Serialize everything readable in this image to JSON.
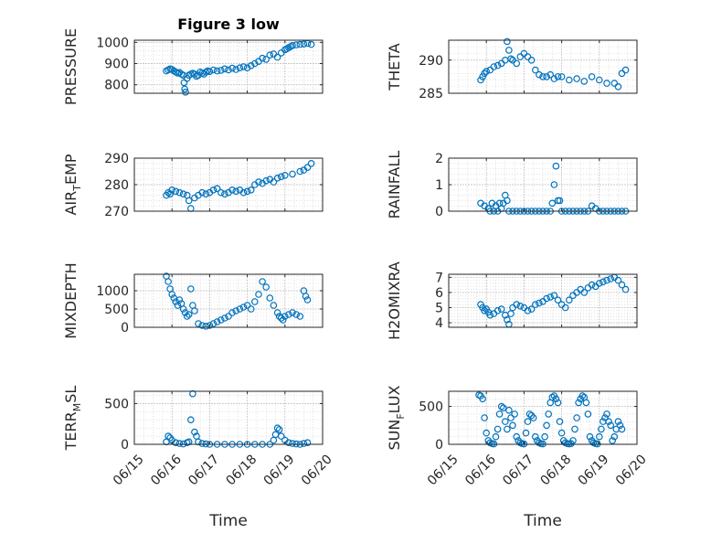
{
  "chart_data": [
    {
      "type": "scatter",
      "title": "Figure 3 low",
      "ylabel": "PRESSURE",
      "ylabel_sub": "",
      "ylim": [
        760,
        1010
      ],
      "yticks": [
        800,
        900,
        1000
      ],
      "xticks": [],
      "xlabel": "",
      "marker_color": "#0072BD",
      "grid": true,
      "x": [
        15.85,
        15.9,
        15.95,
        16.0,
        16.05,
        16.1,
        16.15,
        16.2,
        16.25,
        16.3,
        16.32,
        16.34,
        16.36,
        16.4,
        16.45,
        16.5,
        16.55,
        16.6,
        16.65,
        16.7,
        16.75,
        16.8,
        16.85,
        16.9,
        16.95,
        17.0,
        17.1,
        17.2,
        17.3,
        17.4,
        17.5,
        17.6,
        17.7,
        17.8,
        17.9,
        18.0,
        18.1,
        18.2,
        18.3,
        18.4,
        18.5,
        18.6,
        18.7,
        18.8,
        18.9,
        19.0,
        19.05,
        19.1,
        19.15,
        19.2,
        19.3,
        19.4,
        19.5,
        19.6,
        19.7
      ],
      "y": [
        865,
        870,
        875,
        872,
        865,
        860,
        855,
        858,
        850,
        845,
        810,
        780,
        765,
        830,
        845,
        850,
        855,
        850,
        840,
        845,
        860,
        855,
        850,
        860,
        865,
        862,
        870,
        865,
        868,
        875,
        870,
        878,
        872,
        880,
        885,
        880,
        890,
        900,
        910,
        925,
        920,
        940,
        945,
        930,
        950,
        965,
        970,
        975,
        980,
        985,
        988,
        990,
        992,
        995,
        990
      ]
    },
    {
      "type": "scatter",
      "title": "",
      "ylabel": "THETA",
      "ylabel_sub": "",
      "ylim": [
        285,
        293
      ],
      "yticks": [
        285,
        290
      ],
      "xticks": [],
      "xlabel": "",
      "marker_color": "#0072BD",
      "grid": true,
      "x": [
        15.85,
        15.9,
        15.95,
        16.0,
        16.1,
        16.2,
        16.3,
        16.4,
        16.5,
        16.55,
        16.6,
        16.65,
        16.7,
        16.8,
        16.9,
        17.0,
        17.1,
        17.2,
        17.3,
        17.4,
        17.5,
        17.6,
        17.7,
        17.8,
        17.9,
        18.0,
        18.2,
        18.4,
        18.6,
        18.8,
        19.0,
        19.2,
        19.4,
        19.5,
        19.6,
        19.7
      ],
      "y": [
        287,
        287.5,
        288,
        288.3,
        288.5,
        289,
        289.2,
        289.5,
        290,
        292.8,
        291.5,
        290.2,
        290,
        289.5,
        290.5,
        291,
        290.5,
        290,
        288.5,
        287.8,
        287.5,
        287.5,
        287.8,
        287.2,
        287.5,
        287.5,
        287.0,
        287.2,
        286.8,
        287.5,
        287.0,
        286.5,
        286.5,
        286.0,
        288.0,
        288.5
      ]
    },
    {
      "type": "scatter",
      "title": "",
      "ylabel": "AIR",
      "ylabel_sub": "T",
      "ylabel_suffix": "EMP",
      "ylim": [
        270,
        290
      ],
      "yticks": [
        270,
        280,
        290
      ],
      "xticks": [],
      "xlabel": "",
      "marker_color": "#0072BD",
      "grid": true,
      "x": [
        15.85,
        15.9,
        15.95,
        16.0,
        16.1,
        16.2,
        16.3,
        16.4,
        16.45,
        16.5,
        16.6,
        16.7,
        16.8,
        16.9,
        17.0,
        17.1,
        17.2,
        17.3,
        17.4,
        17.5,
        17.6,
        17.7,
        17.8,
        17.9,
        18.0,
        18.1,
        18.2,
        18.3,
        18.4,
        18.5,
        18.6,
        18.7,
        18.8,
        18.9,
        19.0,
        19.2,
        19.4,
        19.5,
        19.6,
        19.7
      ],
      "y": [
        276,
        277,
        276.5,
        278,
        277.5,
        277,
        276.5,
        276,
        274,
        271,
        275,
        276,
        277,
        276.5,
        277,
        278,
        278.5,
        277,
        276.5,
        277,
        278,
        277.5,
        278,
        277,
        277.5,
        278,
        280,
        281,
        280.5,
        281.5,
        282,
        281,
        282.5,
        283,
        283.5,
        284,
        285,
        285.5,
        286.5,
        288
      ]
    },
    {
      "type": "scatter",
      "title": "",
      "ylabel": "RAINFALL",
      "ylabel_sub": "",
      "ylim": [
        0,
        2
      ],
      "yticks": [
        0,
        1,
        2
      ],
      "xticks": [],
      "xlabel": "",
      "marker_color": "#0072BD",
      "grid": true,
      "x": [
        15.85,
        15.95,
        16.05,
        16.1,
        16.15,
        16.2,
        16.25,
        16.3,
        16.35,
        16.4,
        16.45,
        16.5,
        16.55,
        16.6,
        16.7,
        16.8,
        16.9,
        17.0,
        17.1,
        17.2,
        17.3,
        17.4,
        17.5,
        17.6,
        17.7,
        17.75,
        17.8,
        17.85,
        17.9,
        17.95,
        18.0,
        18.1,
        18.2,
        18.3,
        18.4,
        18.5,
        18.6,
        18.7,
        18.8,
        18.9,
        19.0,
        19.1,
        19.2,
        19.3,
        19.4,
        19.5,
        19.6,
        19.7
      ],
      "y": [
        0.3,
        0.2,
        0.1,
        0,
        0.3,
        0,
        0.2,
        0,
        0.3,
        0.1,
        0.3,
        0.6,
        0.4,
        0,
        0,
        0,
        0,
        0,
        0,
        0,
        0,
        0,
        0,
        0,
        0,
        0.3,
        1.0,
        1.7,
        0.4,
        0.4,
        0,
        0,
        0,
        0,
        0,
        0,
        0,
        0,
        0.2,
        0.1,
        0,
        0,
        0,
        0,
        0,
        0,
        0,
        0
      ]
    },
    {
      "type": "scatter",
      "title": "",
      "ylabel": "MIXDEPTH",
      "ylabel_sub": "",
      "ylim": [
        0,
        1450
      ],
      "yticks": [
        0,
        500,
        1000
      ],
      "xticks": [],
      "xlabel": "",
      "marker_color": "#0072BD",
      "grid": true,
      "x": [
        15.85,
        15.9,
        15.95,
        16.0,
        16.05,
        16.1,
        16.15,
        16.2,
        16.25,
        16.3,
        16.35,
        16.4,
        16.45,
        16.5,
        16.55,
        16.6,
        16.7,
        16.8,
        16.9,
        17.0,
        17.1,
        17.2,
        17.3,
        17.4,
        17.5,
        17.6,
        17.7,
        17.8,
        17.9,
        18.0,
        18.1,
        18.2,
        18.3,
        18.4,
        18.5,
        18.6,
        18.7,
        18.8,
        18.85,
        18.9,
        18.95,
        19.0,
        19.1,
        19.2,
        19.3,
        19.4,
        19.5,
        19.55,
        19.6
      ],
      "y": [
        1400,
        1250,
        1050,
        900,
        800,
        700,
        600,
        750,
        650,
        500,
        400,
        300,
        350,
        1050,
        600,
        450,
        100,
        50,
        30,
        50,
        100,
        150,
        200,
        250,
        300,
        400,
        450,
        500,
        550,
        600,
        500,
        700,
        900,
        1250,
        1100,
        800,
        600,
        400,
        300,
        250,
        200,
        300,
        350,
        400,
        350,
        300,
        1000,
        850,
        750
      ]
    },
    {
      "type": "scatter",
      "title": "",
      "ylabel": "H2OMIXRA",
      "ylabel_sub": "",
      "ylim": [
        3.7,
        7.2
      ],
      "yticks": [
        4,
        5,
        6,
        7
      ],
      "xticks": [],
      "xlabel": "",
      "marker_color": "#0072BD",
      "grid": true,
      "x": [
        15.85,
        15.9,
        15.95,
        16.0,
        16.05,
        16.1,
        16.2,
        16.3,
        16.4,
        16.5,
        16.55,
        16.6,
        16.65,
        16.7,
        16.8,
        16.9,
        17.0,
        17.1,
        17.2,
        17.3,
        17.4,
        17.5,
        17.6,
        17.7,
        17.8,
        17.9,
        18.0,
        18.1,
        18.2,
        18.3,
        18.4,
        18.5,
        18.6,
        18.7,
        18.8,
        18.9,
        19.0,
        19.1,
        19.2,
        19.3,
        19.4,
        19.5,
        19.6,
        19.7
      ],
      "y": [
        5.2,
        5.0,
        4.8,
        4.9,
        4.7,
        4.5,
        4.6,
        4.8,
        4.9,
        4.5,
        4.2,
        3.9,
        4.6,
        5.0,
        5.2,
        5.1,
        5.0,
        4.8,
        4.9,
        5.2,
        5.3,
        5.4,
        5.6,
        5.7,
        5.8,
        5.5,
        5.2,
        5.0,
        5.5,
        5.8,
        6.0,
        6.2,
        6.0,
        6.3,
        6.5,
        6.4,
        6.6,
        6.7,
        6.8,
        6.9,
        7.0,
        6.8,
        6.5,
        6.2
      ]
    },
    {
      "type": "scatter",
      "title": "",
      "ylabel": "TERR",
      "ylabel_sub": "M",
      "ylabel_suffix": "SL",
      "ylim": [
        0,
        650
      ],
      "yticks": [
        0,
        500
      ],
      "xticks": [
        "06/15",
        "06/16",
        "06/17",
        "06/18",
        "06/19",
        "06/20"
      ],
      "xticks_at": [
        15,
        16,
        17,
        18,
        19,
        20
      ],
      "xlim": [
        15,
        20
      ],
      "xlabel": "Time",
      "marker_color": "#0072BD",
      "grid": true,
      "x": [
        15.85,
        15.9,
        15.95,
        16.0,
        16.1,
        16.2,
        16.3,
        16.4,
        16.45,
        16.5,
        16.55,
        16.6,
        16.65,
        16.7,
        16.8,
        16.9,
        17.0,
        17.2,
        17.4,
        17.6,
        17.8,
        18.0,
        18.2,
        18.4,
        18.6,
        18.7,
        18.75,
        18.8,
        18.85,
        18.9,
        19.0,
        19.1,
        19.2,
        19.3,
        19.4,
        19.5,
        19.6
      ],
      "y": [
        30,
        100,
        80,
        50,
        20,
        10,
        5,
        20,
        30,
        300,
        620,
        150,
        100,
        30,
        10,
        5,
        0,
        0,
        0,
        0,
        0,
        0,
        0,
        0,
        0,
        50,
        120,
        200,
        180,
        100,
        50,
        20,
        10,
        5,
        0,
        10,
        20
      ]
    },
    {
      "type": "scatter",
      "title": "",
      "ylabel": "SUN",
      "ylabel_sub": "F",
      "ylabel_suffix": "LUX",
      "ylim": [
        0,
        700
      ],
      "yticks": [
        0,
        500
      ],
      "xticks": [
        "06/15",
        "06/16",
        "06/17",
        "06/18",
        "06/19",
        "06/20"
      ],
      "xticks_at": [
        15,
        16,
        17,
        18,
        19,
        20
      ],
      "xlim": [
        15,
        20
      ],
      "xlabel": "Time",
      "marker_color": "#0072BD",
      "grid": true,
      "x": [
        15.8,
        15.85,
        15.9,
        15.95,
        16.0,
        16.05,
        16.1,
        16.15,
        16.2,
        16.25,
        16.3,
        16.35,
        16.4,
        16.45,
        16.5,
        16.55,
        16.6,
        16.65,
        16.7,
        16.75,
        16.8,
        16.85,
        16.9,
        16.95,
        17.0,
        17.05,
        17.1,
        17.15,
        17.2,
        17.25,
        17.3,
        17.35,
        17.4,
        17.45,
        17.5,
        17.55,
        17.6,
        17.65,
        17.7,
        17.75,
        17.8,
        17.85,
        17.9,
        17.95,
        18.0,
        18.05,
        18.1,
        18.15,
        18.2,
        18.25,
        18.3,
        18.35,
        18.4,
        18.45,
        18.5,
        18.55,
        18.6,
        18.65,
        18.7,
        18.75,
        18.8,
        18.85,
        18.9,
        18.95,
        19.0,
        19.05,
        19.1,
        19.15,
        19.2,
        19.25,
        19.3,
        19.35,
        19.4,
        19.45,
        19.5,
        19.55,
        19.6
      ],
      "y": [
        650,
        640,
        600,
        350,
        150,
        50,
        20,
        10,
        5,
        100,
        200,
        400,
        500,
        480,
        300,
        200,
        450,
        350,
        250,
        400,
        100,
        50,
        20,
        10,
        5,
        150,
        300,
        400,
        380,
        350,
        100,
        50,
        20,
        10,
        5,
        100,
        250,
        400,
        550,
        620,
        640,
        600,
        550,
        300,
        150,
        50,
        20,
        10,
        5,
        10,
        50,
        200,
        350,
        550,
        600,
        640,
        620,
        550,
        400,
        100,
        50,
        20,
        10,
        5,
        100,
        200,
        300,
        350,
        400,
        300,
        250,
        50,
        100,
        200,
        300,
        250,
        200
      ]
    }
  ]
}
